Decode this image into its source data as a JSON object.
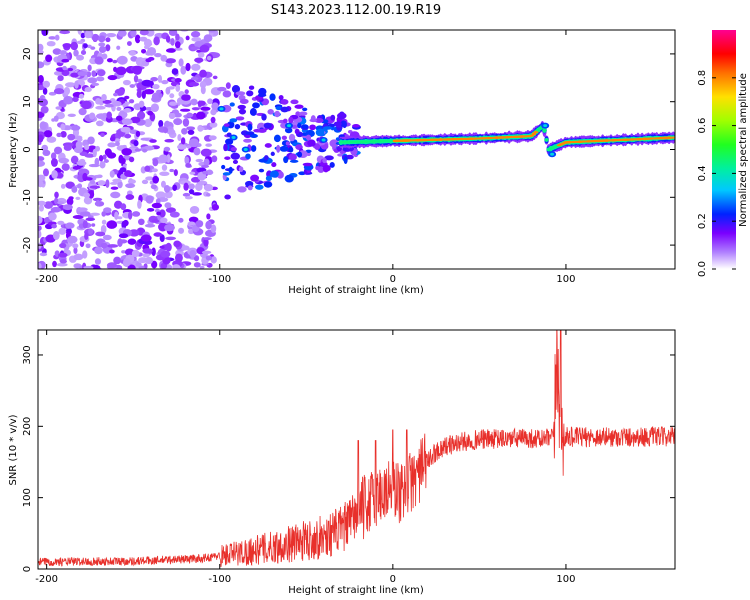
{
  "figure": {
    "title": "S143.2023.112.00.19.R19"
  },
  "chart_data": [
    {
      "type": "heatmap",
      "xlabel": "Height of straight line (km)",
      "ylabel": "Frequency (Hz)",
      "xlim": [
        -205,
        163
      ],
      "ylim": [
        -25,
        25
      ],
      "xticks": [
        -200,
        -100,
        0,
        100
      ],
      "yticks": [
        -20,
        -10,
        0,
        10,
        20
      ],
      "grid": false,
      "colorbar": {
        "label": "Normalized spectral amplitude",
        "range": [
          0,
          1
        ],
        "ticks": [
          0.0,
          0.2,
          0.4,
          0.6,
          0.8
        ],
        "colormap": "rainbow (white-purple-blue-cyan-green-yellow-red-magenta)"
      },
      "ridge": {
        "description": "dominant frequency ridge",
        "points": [
          [
            -100,
            8.5
          ],
          [
            -95,
            2.5
          ],
          [
            -60,
            5
          ],
          [
            -30,
            1.5
          ],
          [
            0,
            1.8
          ],
          [
            50,
            2.3
          ],
          [
            80,
            2.8
          ],
          [
            87,
            5
          ],
          [
            90,
            0
          ],
          [
            100,
            1.5
          ],
          [
            163,
            2.5
          ]
        ]
      }
    },
    {
      "type": "line",
      "xlabel": "Height of straight line (km)",
      "ylabel": "SNR (10 * v/v)",
      "xlim": [
        -205,
        163
      ],
      "ylim": [
        0,
        335
      ],
      "xticks": [
        -200,
        -100,
        0,
        100
      ],
      "yticks": [
        0,
        100,
        200,
        300
      ],
      "grid": false,
      "series": [
        {
          "color": "#e8302b",
          "x": [
            -205,
            -150,
            -110,
            -90,
            -70,
            -50,
            -40,
            -30,
            -25,
            -20,
            -15,
            -10,
            -5,
            0,
            5,
            10,
            15,
            20,
            25,
            30,
            40,
            50,
            60,
            70,
            80,
            85,
            90,
            93,
            95,
            97,
            99,
            100,
            105,
            110,
            120,
            140,
            163
          ],
          "values": [
            10,
            11,
            15,
            22,
            30,
            40,
            45,
            55,
            65,
            80,
            90,
            100,
            108,
            115,
            105,
            120,
            135,
            150,
            165,
            172,
            178,
            182,
            182,
            183,
            183,
            182,
            183,
            185,
            310,
            180,
            183,
            185,
            185,
            185,
            185,
            185,
            186
          ],
          "peaks": [
            [
              -20,
              180
            ],
            [
              -10,
              180
            ],
            [
              0,
              195
            ],
            [
              8,
              195
            ],
            [
              97,
              335
            ]
          ]
        }
      ]
    }
  ],
  "colors": {
    "series": "#e8302b",
    "axis": "#000000"
  }
}
